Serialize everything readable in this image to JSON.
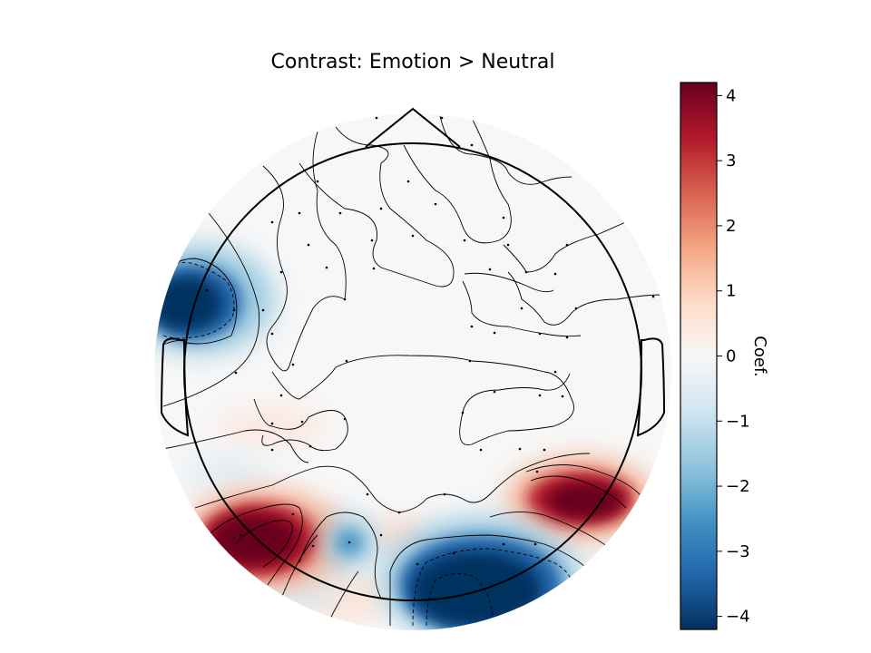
{
  "chart_data": {
    "type": "heatmap",
    "subtype": "topographic-scalp-map",
    "title": "Contrast: Emotion > Neutral",
    "colorbar": {
      "label": "Coef.",
      "range": [
        -4.2,
        4.2
      ],
      "ticks": [
        4,
        3,
        2,
        1,
        0,
        -1,
        -2,
        -3,
        -4
      ],
      "tick_labels": [
        "4",
        "3",
        "2",
        "1",
        "0",
        "−1",
        "−2",
        "−3",
        "−4"
      ],
      "colormap": "RdBu_r",
      "colors": [
        "#053061",
        "#2166ac",
        "#4393c3",
        "#92c5de",
        "#d1e5f0",
        "#f7f7f7",
        "#fddbc7",
        "#f4a582",
        "#d6604d",
        "#b2182b",
        "#67001f"
      ]
    },
    "blobs": [
      {
        "region": "left-temporal",
        "value": -4.2
      },
      {
        "region": "left-occipital",
        "value": 4.2
      },
      {
        "region": "right-occipitotemporal",
        "value": 4.2
      },
      {
        "region": "occipital-midline",
        "value": -4.2
      },
      {
        "region": "left-parieto-occipital",
        "value": -2.2
      }
    ],
    "head_outline": true,
    "sensors_shown": true,
    "contour_lines": true
  }
}
